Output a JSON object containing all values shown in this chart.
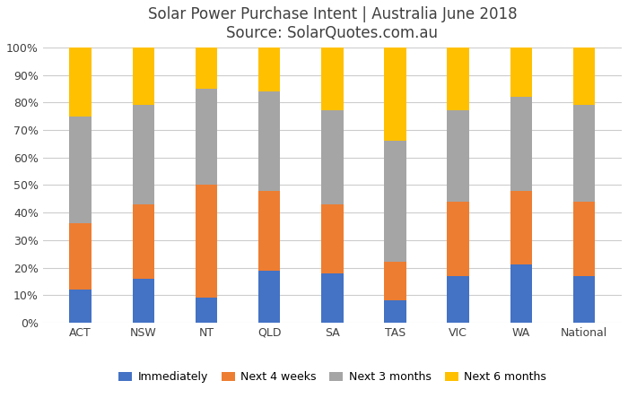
{
  "categories": [
    "ACT",
    "NSW",
    "NT",
    "QLD",
    "SA",
    "TAS",
    "VIC",
    "WA",
    "National"
  ],
  "immediately": [
    12,
    16,
    9,
    19,
    18,
    8,
    17,
    21,
    17
  ],
  "next_4_weeks": [
    24,
    27,
    41,
    29,
    25,
    14,
    27,
    27,
    27
  ],
  "next_3_months": [
    39,
    36,
    35,
    36,
    34,
    44,
    33,
    34,
    35
  ],
  "next_6_months": [
    25,
    21,
    15,
    16,
    23,
    34,
    23,
    18,
    21
  ],
  "colors": {
    "immediately": "#4472C4",
    "next_4_weeks": "#ED7D31",
    "next_3_months": "#A5A5A5",
    "next_6_months": "#FFC000"
  },
  "title_line1": "Solar Power Purchase Intent | Australia June 2018",
  "title_line2": "Source: SolarQuotes.com.au",
  "ylabel_ticks": [
    "0%",
    "10%",
    "20%",
    "30%",
    "40%",
    "50%",
    "60%",
    "70%",
    "80%",
    "90%",
    "100%"
  ],
  "legend_labels": [
    "Immediately",
    "Next 4 weeks",
    "Next 3 months",
    "Next 6 months"
  ],
  "bar_width": 0.35,
  "figsize": [
    7.0,
    4.44
  ],
  "dpi": 100,
  "title_fontsize": 12,
  "tick_fontsize": 9,
  "legend_fontsize": 9
}
